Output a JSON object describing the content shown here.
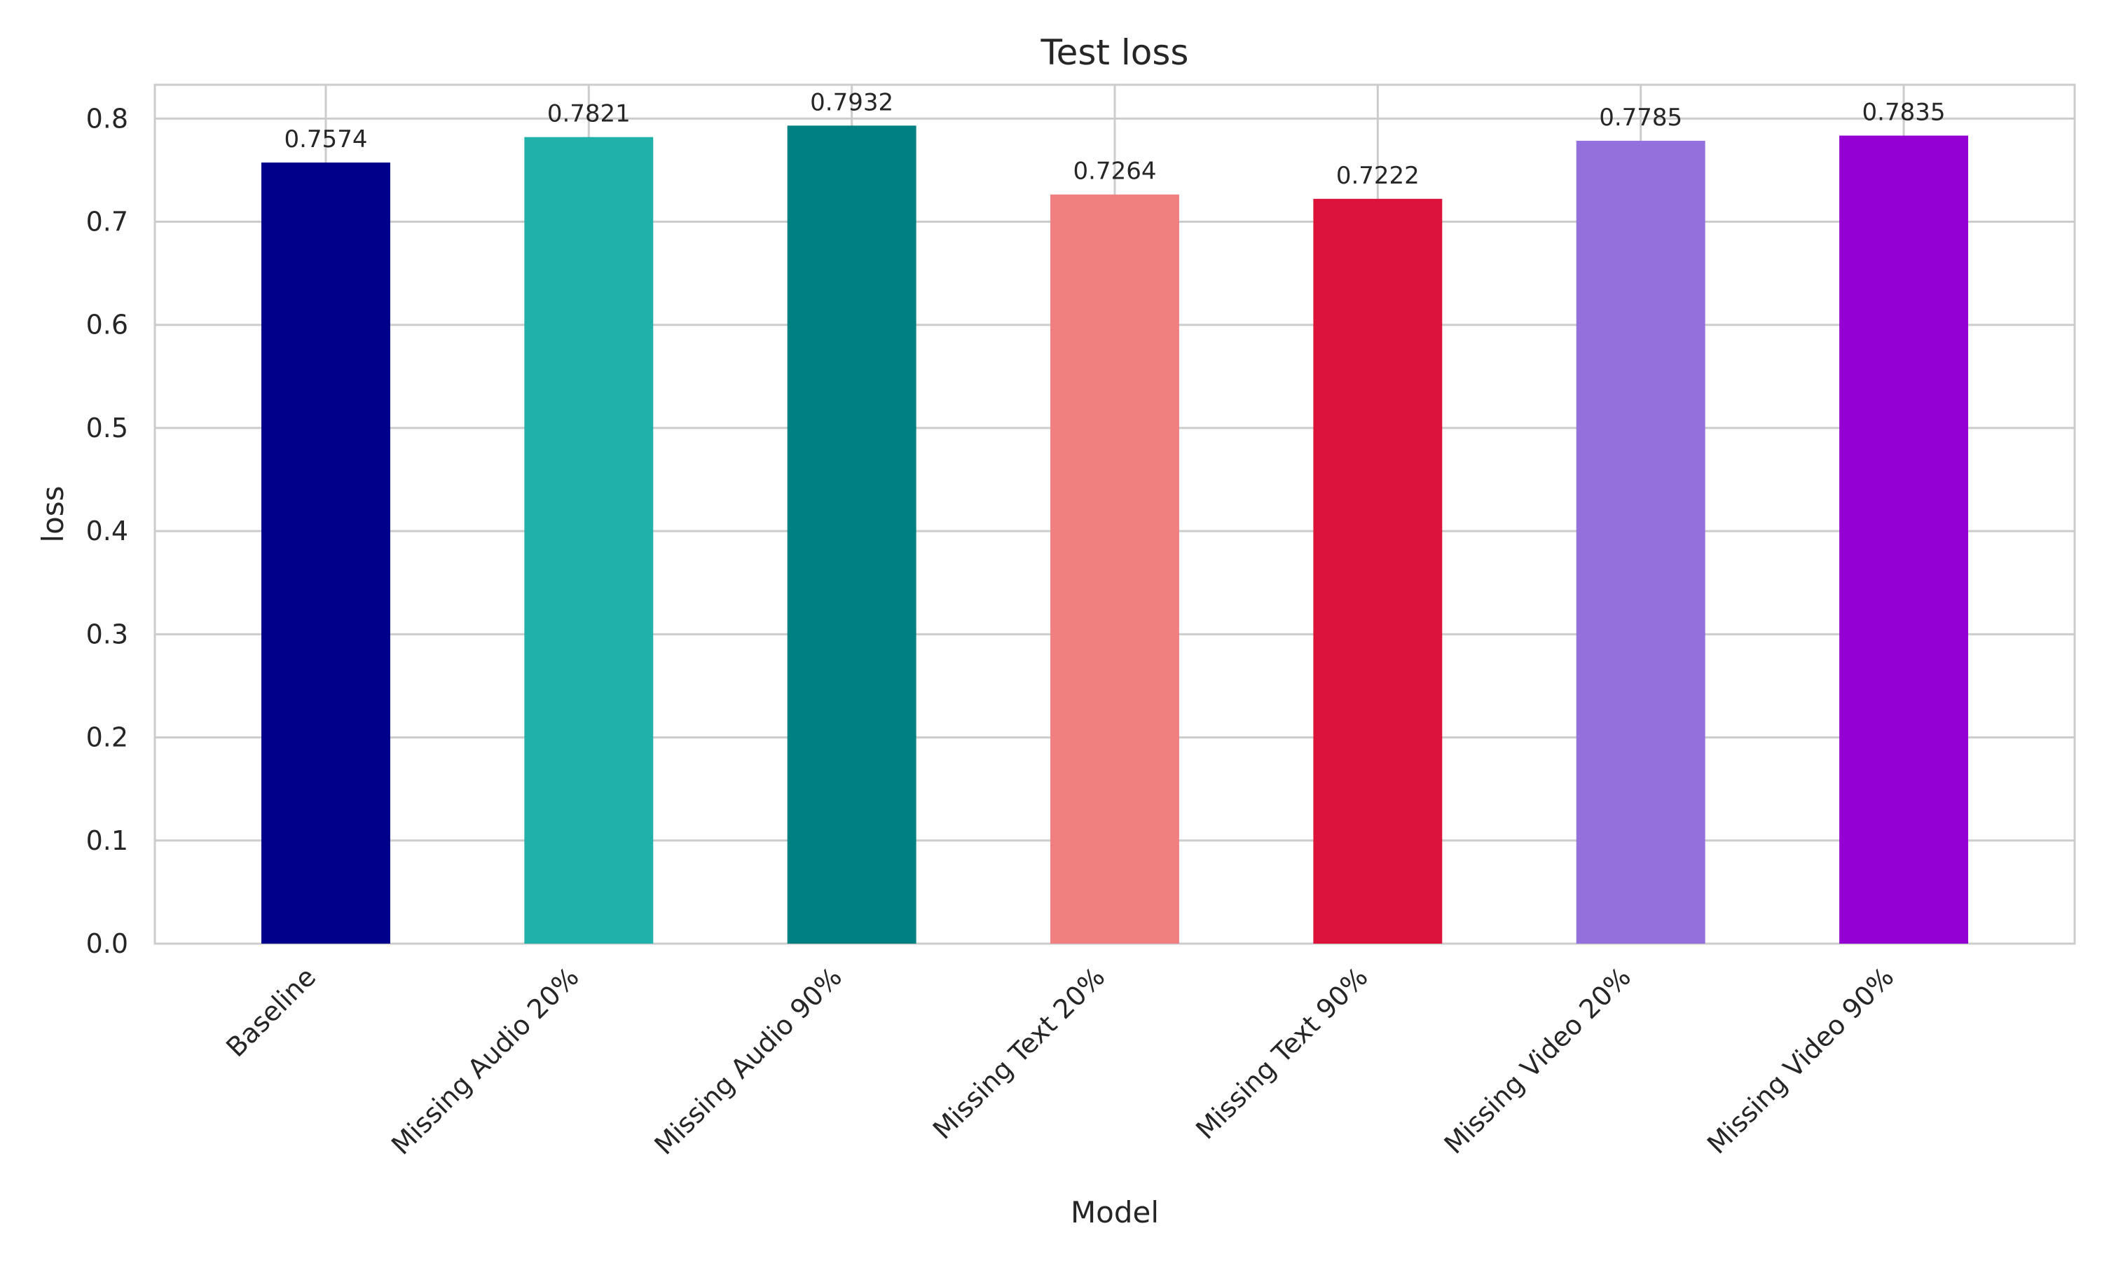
{
  "chart_data": {
    "type": "bar",
    "title": "Test loss",
    "xlabel": "Model",
    "ylabel": "loss",
    "categories": [
      "Baseline",
      "Missing Audio 20%",
      "Missing Audio 90%",
      "Missing Text 20%",
      "Missing Text 90%",
      "Missing Video 20%",
      "Missing Video 90%"
    ],
    "values": [
      0.7574,
      0.7821,
      0.7932,
      0.7264,
      0.7222,
      0.7785,
      0.7835
    ],
    "data_labels": [
      "0.7574",
      "0.7821",
      "0.7932",
      "0.7264",
      "0.7222",
      "0.7785",
      "0.7835"
    ],
    "colors": [
      "#00008b",
      "#20b2aa",
      "#008080",
      "#f08080",
      "#dc143c",
      "#9370db",
      "#9400d3"
    ],
    "yticks": [
      0.0,
      0.1,
      0.2,
      0.3,
      0.4,
      0.5,
      0.6,
      0.7,
      0.8
    ],
    "ytick_labels": [
      "0.0",
      "0.1",
      "0.2",
      "0.3",
      "0.4",
      "0.5",
      "0.6",
      "0.7",
      "0.8"
    ],
    "ylim": [
      0,
      0.8328
    ],
    "grid": true,
    "legend": "none"
  }
}
